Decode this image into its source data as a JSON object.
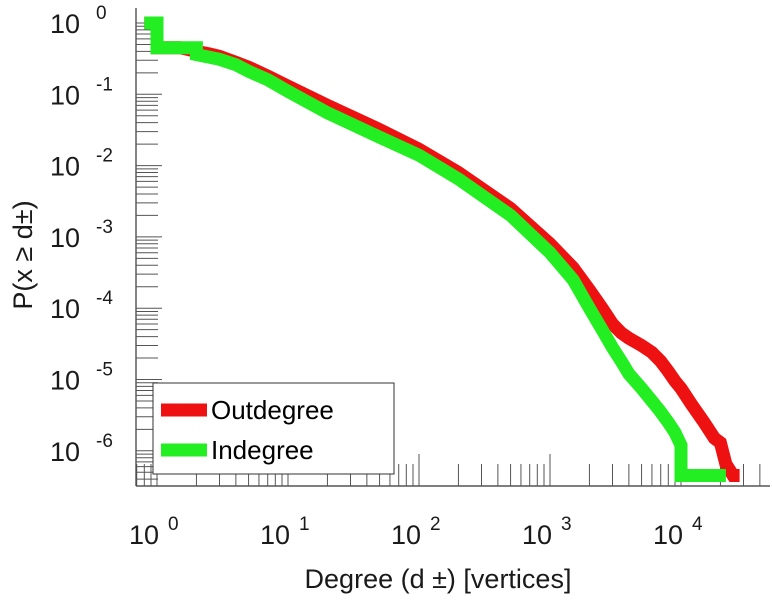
{
  "chart_data": {
    "type": "line",
    "x_scale": "log",
    "y_scale": "log",
    "xlim": [
      0.8,
      40000
    ],
    "ylim": [
      3e-07,
      1.15
    ],
    "xlabel": "Degree (d  ±) [vertices]",
    "ylabel": "P(x ≥ d±)",
    "grid": false,
    "legend_position": "bottom-left",
    "x_ticks": [
      {
        "value": 1,
        "base": "10",
        "exp": "0"
      },
      {
        "value": 10,
        "base": "10",
        "exp": "1"
      },
      {
        "value": 100,
        "base": "10",
        "exp": "2"
      },
      {
        "value": 1000,
        "base": "10",
        "exp": "3"
      },
      {
        "value": 10000,
        "base": "10",
        "exp": "4"
      }
    ],
    "y_ticks": [
      {
        "value": 1,
        "base": "10",
        "exp": "0"
      },
      {
        "value": 0.1,
        "base": "10",
        "exp": "-1"
      },
      {
        "value": 0.01,
        "base": "10",
        "exp": "-2"
      },
      {
        "value": 0.001,
        "base": "10",
        "exp": "-3"
      },
      {
        "value": 0.0001,
        "base": "10",
        "exp": "-4"
      },
      {
        "value": 1e-05,
        "base": "10",
        "exp": "-5"
      },
      {
        "value": 1e-06,
        "base": "10",
        "exp": "-6"
      }
    ],
    "series": [
      {
        "name": "Outdegree",
        "color": "#ee1111",
        "x": [
          0.8,
          1,
          1,
          1.5,
          2,
          2.5,
          3,
          4,
          5,
          7,
          10,
          20,
          50,
          100,
          200,
          500,
          1000,
          1500,
          2000,
          2500,
          3000,
          3500,
          4000,
          5000,
          6000,
          7000,
          8000,
          9000,
          10000,
          12000,
          15000,
          18000,
          20000,
          22000,
          25000,
          28000
        ],
        "y": [
          1,
          1,
          0.45,
          0.45,
          0.4,
          0.37,
          0.34,
          0.28,
          0.24,
          0.18,
          0.13,
          0.07,
          0.032,
          0.017,
          0.008,
          0.0025,
          0.0008,
          0.00037,
          0.00018,
          0.0001,
          6e-05,
          4.5e-05,
          3.8e-05,
          3e-05,
          2.4e-05,
          1.8e-05,
          1.3e-05,
          9.5e-06,
          7.5e-06,
          4.5e-06,
          2.5e-06,
          1.5e-06,
          1.3e-06,
          6.5e-07,
          4.5e-07,
          4.5e-07
        ]
      },
      {
        "name": "Indegree",
        "color": "#22ee22",
        "x": [
          0.8,
          1,
          1,
          2,
          2,
          3,
          4,
          5,
          7,
          10,
          20,
          50,
          100,
          200,
          500,
          1000,
          1500,
          2000,
          2500,
          3000,
          3500,
          4000,
          5000,
          6000,
          7000,
          8000,
          9000,
          10000,
          10000,
          15000,
          22000
        ],
        "y": [
          1,
          1,
          0.45,
          0.45,
          0.36,
          0.31,
          0.26,
          0.21,
          0.16,
          0.11,
          0.055,
          0.025,
          0.014,
          0.0065,
          0.002,
          0.0006,
          0.00025,
          0.0001,
          5e-05,
          2.8e-05,
          1.8e-05,
          1.2e-05,
          7.5e-06,
          5e-06,
          3.5e-06,
          2.5e-06,
          1.8e-06,
          1.2e-06,
          4.5e-07,
          4.5e-07,
          4.5e-07
        ]
      }
    ]
  }
}
